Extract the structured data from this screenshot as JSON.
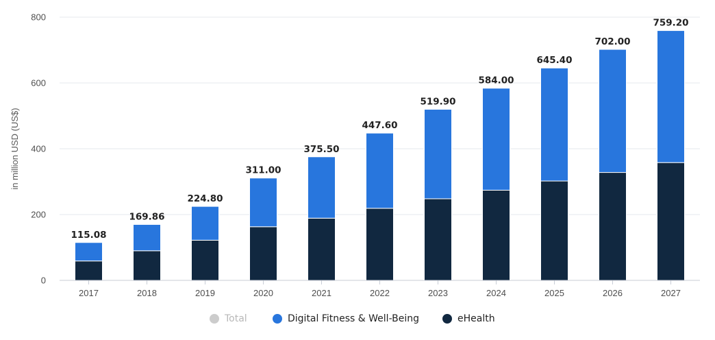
{
  "chart_data": {
    "type": "bar",
    "stacked": true,
    "categories": [
      "2017",
      "2018",
      "2019",
      "2020",
      "2021",
      "2022",
      "2023",
      "2024",
      "2025",
      "2026",
      "2027"
    ],
    "series": [
      {
        "name": "eHealth",
        "color": "#112840",
        "values": [
          59,
          90,
          122,
          163,
          189,
          219,
          248,
          274,
          302,
          328,
          358
        ]
      },
      {
        "name": "Digital Fitness & Well-Being",
        "color": "#2876dd",
        "values": [
          56.08,
          79.86,
          102.8,
          148,
          186.5,
          228.6,
          271.9,
          310,
          343.4,
          374,
          401.2
        ]
      }
    ],
    "totals": [
      "115.08",
      "169.86",
      "224.80",
      "311.00",
      "375.50",
      "447.60",
      "519.90",
      "584.00",
      "645.40",
      "702.00",
      "759.20"
    ],
    "ylabel": "in million USD (US$)",
    "ylim": [
      0,
      800
    ],
    "yticks": [
      0,
      200,
      400,
      600,
      800
    ],
    "grid": true,
    "legend_position": "bottom-center"
  },
  "legend": {
    "items": [
      {
        "label": "Total",
        "color": "#cccccc",
        "active": false
      },
      {
        "label": "Digital Fitness & Well-Being",
        "color": "#2876dd",
        "active": true
      },
      {
        "label": "eHealth",
        "color": "#112840",
        "active": true
      }
    ]
  }
}
